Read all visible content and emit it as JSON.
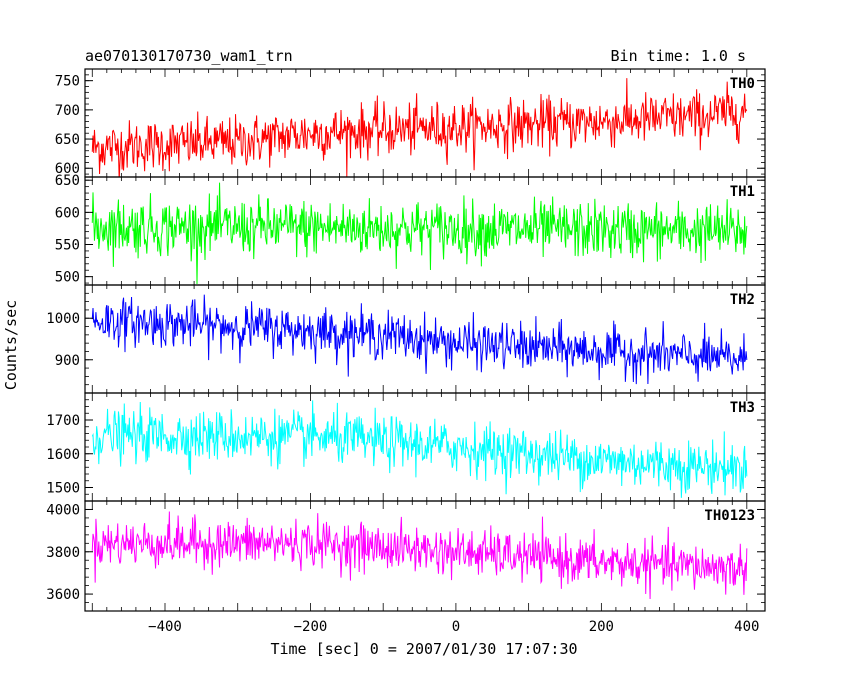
{
  "header": {
    "title": "ae070130170730_wam1_trn",
    "bin_time": "Bin time: 1.0 s"
  },
  "chart_data": {
    "type": "line",
    "title": "ae070130170730_wam1_trn",
    "xlabel": "Time [sec] 0 = 2007/01/30 17:07:30",
    "ylabel": "Counts/sec",
    "xlim": [
      -510,
      425
    ],
    "x_ticks": [
      -400,
      -200,
      0,
      200,
      400
    ],
    "x_range": [
      -500,
      400
    ],
    "bin_time_s": 1.0,
    "panels": [
      {
        "name": "TH0",
        "color": "#ff0000",
        "ylim": [
          585,
          770
        ],
        "y_ticks": [
          600,
          650,
          700,
          750
        ],
        "trend": [
          [
            -500,
            635
          ],
          [
            -300,
            645
          ],
          [
            -200,
            660
          ],
          [
            0,
            670
          ],
          [
            200,
            680
          ],
          [
            350,
            690
          ],
          [
            400,
            700
          ]
        ],
        "noise_sd": 22
      },
      {
        "name": "TH1",
        "color": "#00ff00",
        "ylim": [
          487,
          655
        ],
        "y_ticks": [
          500,
          550,
          600,
          650
        ],
        "trend": [
          [
            -500,
            578
          ],
          [
            -200,
            576
          ],
          [
            0,
            574
          ],
          [
            200,
            572
          ],
          [
            400,
            570
          ]
        ],
        "noise_sd": 22
      },
      {
        "name": "TH2",
        "color": "#0000ff",
        "ylim": [
          820,
          1080
        ],
        "y_ticks": [
          900,
          1000
        ],
        "trend": [
          [
            -500,
            995
          ],
          [
            -300,
            980
          ],
          [
            -100,
            960
          ],
          [
            0,
            940
          ],
          [
            200,
            920
          ],
          [
            400,
            900
          ]
        ],
        "noise_sd": 28
      },
      {
        "name": "TH3",
        "color": "#00ffff",
        "ylim": [
          1460,
          1780
        ],
        "y_ticks": [
          1500,
          1600,
          1700
        ],
        "trend": [
          [
            -500,
            1655
          ],
          [
            -200,
            1650
          ],
          [
            0,
            1620
          ],
          [
            200,
            1580
          ],
          [
            400,
            1555
          ]
        ],
        "noise_sd": 38
      },
      {
        "name": "TH0123",
        "color": "#ff00ff",
        "ylim": [
          3520,
          4040
        ],
        "y_ticks": [
          3600,
          3800,
          4000
        ],
        "trend": [
          [
            -500,
            3840
          ],
          [
            -200,
            3840
          ],
          [
            0,
            3800
          ],
          [
            200,
            3750
          ],
          [
            400,
            3720
          ]
        ],
        "noise_sd": 55
      }
    ]
  }
}
